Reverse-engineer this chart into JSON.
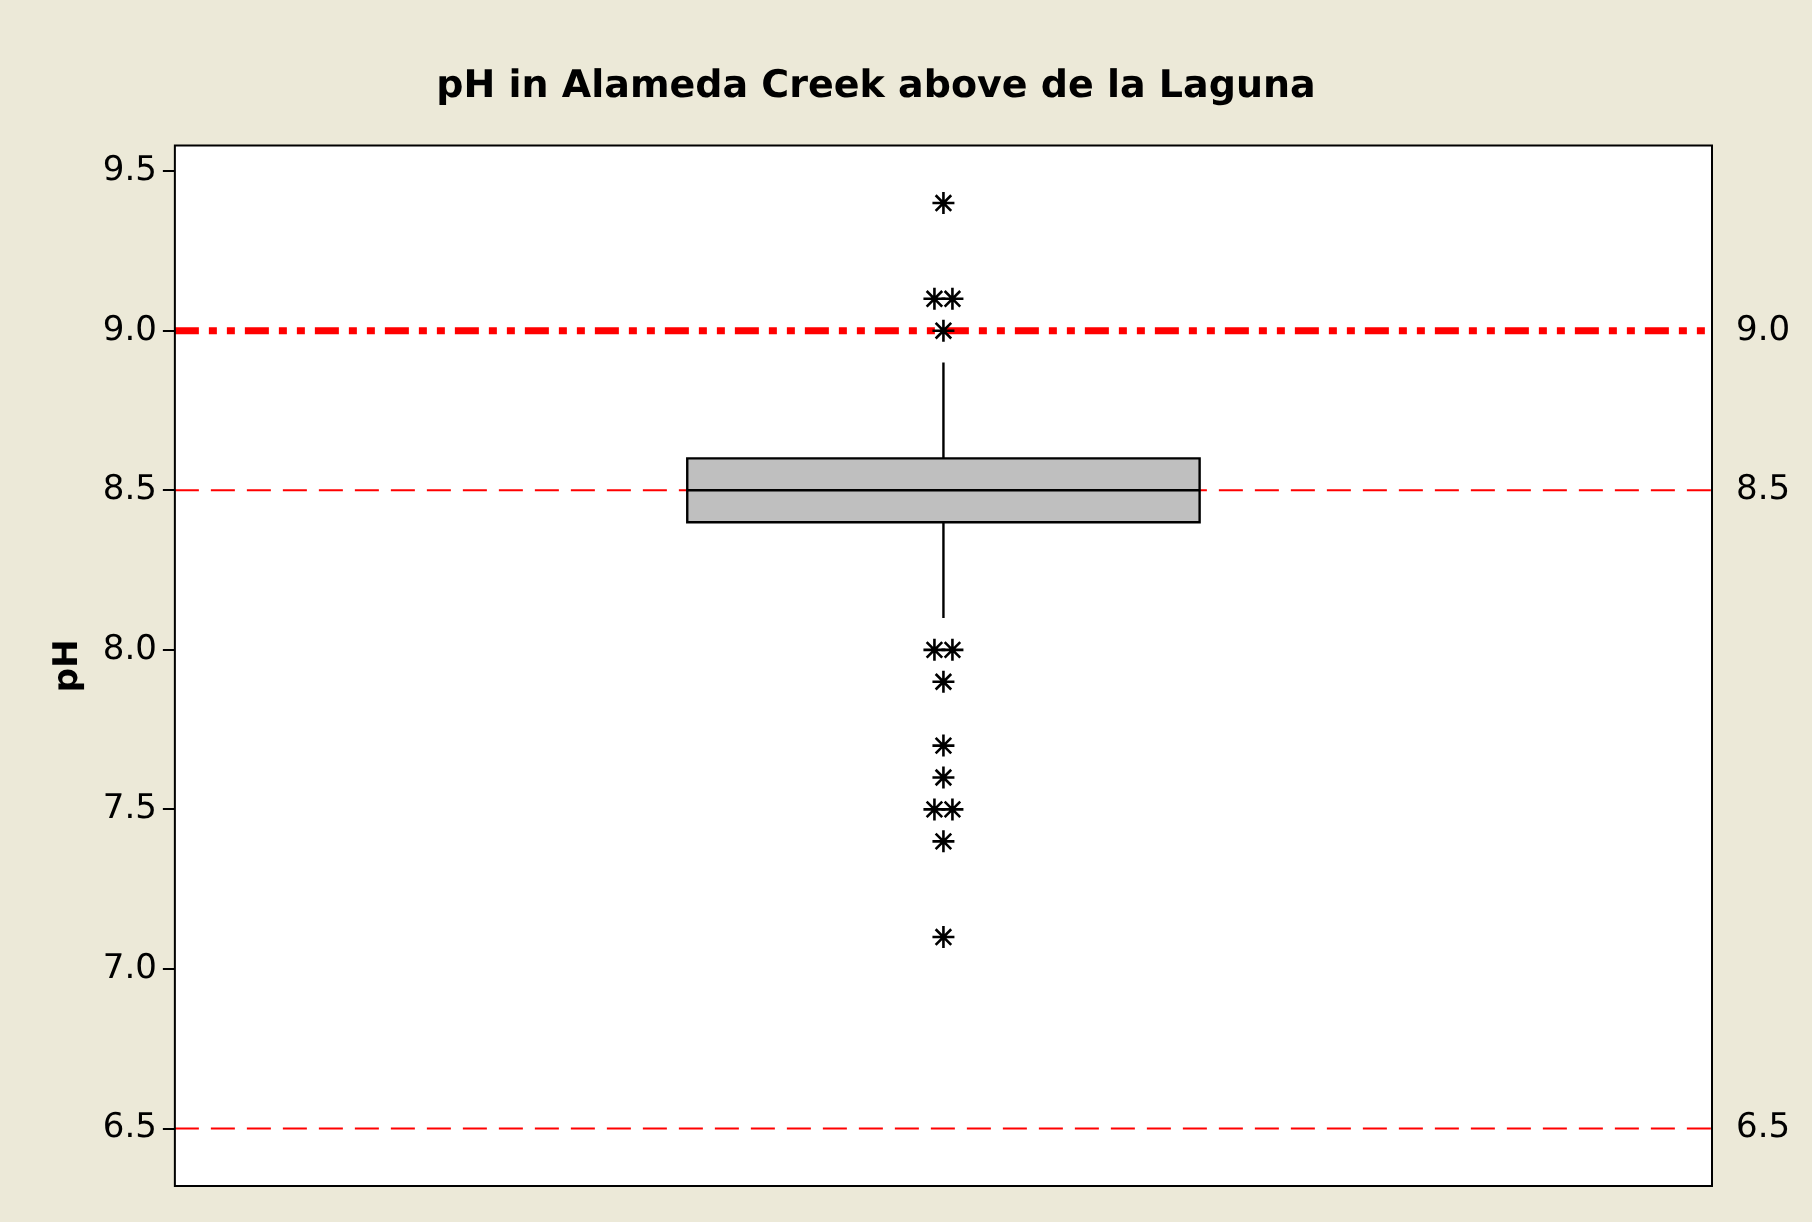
{
  "chart_data": {
    "type": "box",
    "title": "pH in Alameda Creek above de la Laguna",
    "ylabel": "pH",
    "categories": [
      null
    ],
    "boxes": [
      {
        "low": 8.1,
        "q1": 8.4,
        "median": 8.5,
        "q3": 8.6,
        "high": 8.9,
        "outliers": [
          9.4,
          9.1,
          9.1,
          9.0,
          8.0,
          8.0,
          7.9,
          7.7,
          7.6,
          7.5,
          7.5,
          7.4,
          7.1
        ]
      }
    ],
    "color": "#bfbfbf",
    "ylim": [
      6.32,
      9.58
    ],
    "yticks": [
      {
        "value": 6.5,
        "label": "6.5"
      },
      {
        "value": 7,
        "label": "7.0"
      },
      {
        "value": 7.5,
        "label": "7.5"
      },
      {
        "value": 8,
        "label": "8.0"
      },
      {
        "value": 8.5,
        "label": "8.5"
      },
      {
        "value": 9,
        "label": "9.0"
      },
      {
        "value": 9.5,
        "label": "9.5"
      }
    ],
    "ref_lines": [
      {
        "axis": "y",
        "value": 9.0,
        "label": "9.0",
        "color": "#ff0000",
        "line_style": "dashdot"
      },
      {
        "axis": "y",
        "value": 8.5,
        "label": "8.5",
        "color": "#ff0000",
        "line_style": "dashed"
      },
      {
        "axis": "y",
        "value": 6.5,
        "label": "6.5",
        "color": "#ff0000",
        "line_style": "dashed"
      }
    ],
    "marker": "star",
    "grid": false,
    "legend": false,
    "tick_labels": "y"
  }
}
